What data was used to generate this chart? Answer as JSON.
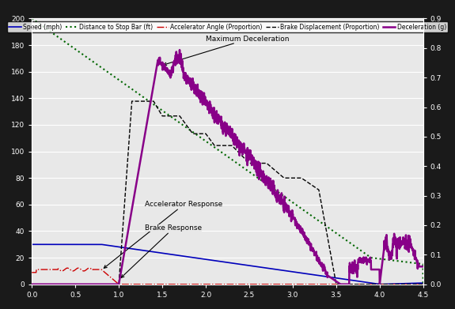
{
  "xlim": [
    0.0,
    4.5
  ],
  "ylim_left": [
    0,
    200
  ],
  "ylim_right": [
    0,
    0.9
  ],
  "fig_bg": "#1a1a1a",
  "plot_bg": "#e8e8e8",
  "legend_entries": [
    {
      "label": "Speed (mph)",
      "color": "#0000bb",
      "ls": "solid",
      "lw": 1.2
    },
    {
      "label": "Distance to Stop Bar (ft)",
      "color": "#006600",
      "ls": "dotted",
      "lw": 1.5
    },
    {
      "label": "Accelerator Angle (Proportion)",
      "color": "#cc0000",
      "ls": "dashdot",
      "lw": 1.0
    },
    {
      "label": "Brake Displacement (Proportion)",
      "color": "#000000",
      "ls": "dashed",
      "lw": 1.0
    },
    {
      "label": "Deceleration (g)",
      "color": "#880088",
      "ls": "solid",
      "lw": 1.8
    }
  ],
  "xticks": [
    0.0,
    0.5,
    1.0,
    1.5,
    2.0,
    2.5,
    3.0,
    3.5,
    4.0,
    4.5
  ],
  "yticks_left": [
    0,
    20,
    40,
    60,
    80,
    100,
    120,
    140,
    160,
    180,
    200
  ],
  "yticks_right": [
    0.0,
    0.1,
    0.2,
    0.3,
    0.4,
    0.5,
    0.6,
    0.7,
    0.8,
    0.9
  ],
  "grid_color": "#ffffff",
  "grid_lw": 0.8
}
